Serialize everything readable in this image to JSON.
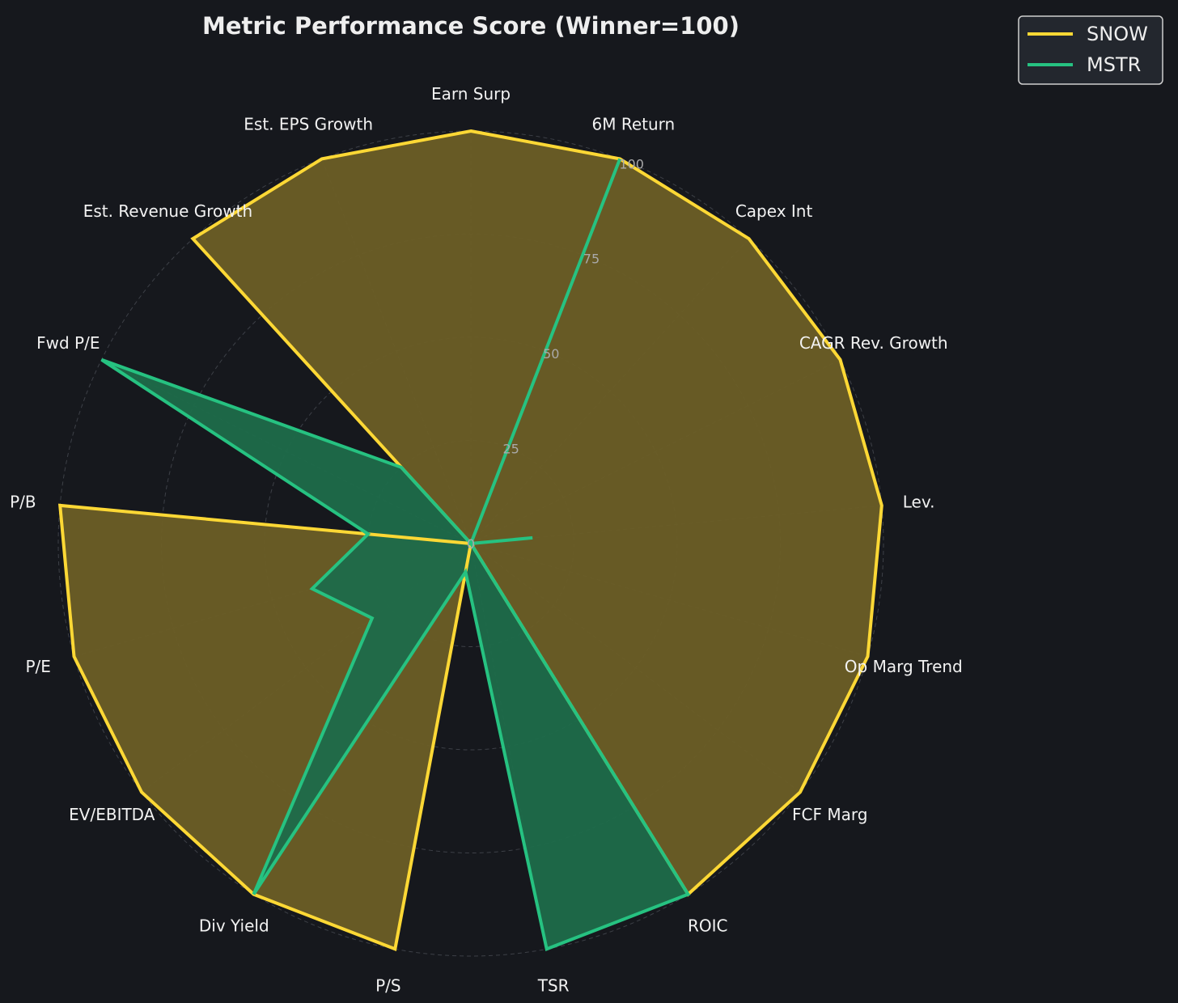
{
  "chart_data": {
    "type": "radar",
    "title": "Metric Performance Score (Winner=100)",
    "axes": [
      "Earn Surp",
      "6M Return",
      "Capex Int",
      "CAGR Rev. Growth",
      "Lev.",
      "Op Marg Trend",
      "FCF Marg",
      "ROIC",
      "TSR",
      "P/S",
      "Div Yield",
      "EV/EBITDA",
      "P/E",
      "P/B",
      "Fwd P/E",
      "Est. Revenue Growth",
      "Est. EPS Growth"
    ],
    "radial_ticks": [
      0,
      25,
      50,
      75,
      100
    ],
    "rlim": [
      0,
      100
    ],
    "grid": true,
    "legend_position": "top-right",
    "series": [
      {
        "name": "SNOW",
        "color": "#fdd835",
        "fill": "#6b5e26",
        "values": [
          100,
          100,
          100,
          100,
          100,
          100,
          100,
          100,
          0,
          100,
          100,
          100,
          100,
          100,
          0,
          100,
          100
        ]
      },
      {
        "name": "MSTR",
        "color": "#26c281",
        "fill": "#1e6b4a",
        "values": [
          0,
          100,
          0,
          0,
          15,
          0,
          0,
          100,
          100,
          7,
          100,
          30,
          40,
          25,
          100,
          25,
          0
        ]
      }
    ]
  }
}
